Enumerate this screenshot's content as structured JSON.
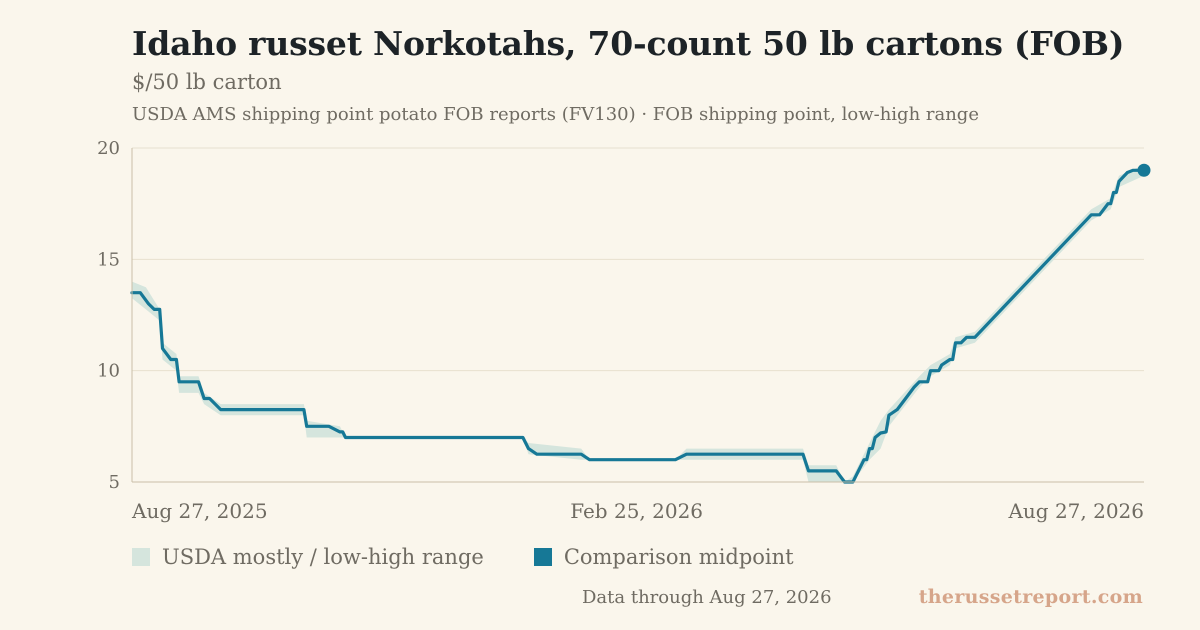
{
  "header": {
    "title": "Idaho russet Norkotahs, 70-count 50 lb cartons (FOB)",
    "subtitle": "$/50 lb carton",
    "source": "USDA AMS shipping point potato FOB reports (FV130) · FOB shipping point, low-high range"
  },
  "footer": {
    "data_through": "Data through Aug 27, 2026",
    "brand": "therussetreport.com"
  },
  "colors": {
    "background": "#faf6ec",
    "line": "#167896",
    "band": "#d5e5dd",
    "grid": "#e7e0cf",
    "axis": "#c9bfa8",
    "brand": "#d6a58a"
  },
  "chart_data": {
    "type": "line",
    "x_type": "date",
    "ylim": [
      5,
      20
    ],
    "xlim": [
      "2025-08-27",
      "2026-08-27"
    ],
    "y_ticks": [
      5,
      10,
      15,
      20
    ],
    "y_tick_labels": [
      "5",
      "10",
      "15",
      "20"
    ],
    "x_ticks": [
      "2025-08-27",
      "2026-02-25",
      "2026-08-27"
    ],
    "x_tick_labels": [
      "Aug 27, 2025",
      "Feb 25, 2026",
      "Aug 27, 2026"
    ],
    "grid": true,
    "legend_position": "bottom",
    "legend": [
      "USDA mostly / low-high range",
      "Comparison midpoint"
    ],
    "series": [
      {
        "name": "Comparison midpoint",
        "kind": "line",
        "points": [
          [
            "2025-08-27",
            13.5
          ],
          [
            "2025-08-30",
            13.5
          ],
          [
            "2025-09-02",
            13.0
          ],
          [
            "2025-09-04",
            12.75
          ],
          [
            "2025-09-06",
            12.75
          ],
          [
            "2025-09-07",
            11.0
          ],
          [
            "2025-09-10",
            10.5
          ],
          [
            "2025-09-12",
            10.5
          ],
          [
            "2025-09-13",
            9.5
          ],
          [
            "2025-09-20",
            9.5
          ],
          [
            "2025-09-22",
            8.75
          ],
          [
            "2025-09-24",
            8.75
          ],
          [
            "2025-09-28",
            8.25
          ],
          [
            "2025-10-28",
            8.25
          ],
          [
            "2025-10-29",
            7.5
          ],
          [
            "2025-11-06",
            7.5
          ],
          [
            "2025-11-10",
            7.25
          ],
          [
            "2025-11-11",
            7.25
          ],
          [
            "2025-11-12",
            7.0
          ],
          [
            "2026-01-15",
            7.0
          ],
          [
            "2026-01-17",
            6.5
          ],
          [
            "2026-01-20",
            6.25
          ],
          [
            "2026-02-05",
            6.25
          ],
          [
            "2026-02-08",
            6.0
          ],
          [
            "2026-03-11",
            6.0
          ],
          [
            "2026-03-15",
            6.25
          ],
          [
            "2026-04-26",
            6.25
          ],
          [
            "2026-04-28",
            5.5
          ],
          [
            "2026-05-08",
            5.5
          ],
          [
            "2026-05-11",
            5.0
          ],
          [
            "2026-05-14",
            5.0
          ],
          [
            "2026-05-18",
            6.0
          ],
          [
            "2026-05-19",
            6.0
          ],
          [
            "2026-05-20",
            6.5
          ],
          [
            "2026-05-21",
            6.5
          ],
          [
            "2026-05-22",
            7.0
          ],
          [
            "2026-05-24",
            7.2
          ],
          [
            "2026-05-26",
            7.25
          ],
          [
            "2026-05-27",
            8.0
          ],
          [
            "2026-05-30",
            8.25
          ],
          [
            "2026-06-02",
            8.75
          ],
          [
            "2026-06-05",
            9.25
          ],
          [
            "2026-06-07",
            9.5
          ],
          [
            "2026-06-10",
            9.5
          ],
          [
            "2026-06-11",
            10.0
          ],
          [
            "2026-06-14",
            10.0
          ],
          [
            "2026-06-15",
            10.25
          ],
          [
            "2026-06-18",
            10.5
          ],
          [
            "2026-06-19",
            10.5
          ],
          [
            "2026-06-20",
            11.25
          ],
          [
            "2026-06-22",
            11.25
          ],
          [
            "2026-06-24",
            11.5
          ],
          [
            "2026-06-27",
            11.5
          ],
          [
            "2026-08-08",
            17.0
          ],
          [
            "2026-08-11",
            17.0
          ],
          [
            "2026-08-14",
            17.5
          ],
          [
            "2026-08-15",
            17.5
          ],
          [
            "2026-08-16",
            18.0
          ],
          [
            "2026-08-17",
            18.0
          ],
          [
            "2026-08-18",
            18.5
          ],
          [
            "2026-08-21",
            18.9
          ],
          [
            "2026-08-23",
            19.0
          ],
          [
            "2026-08-27",
            19.0
          ]
        ]
      },
      {
        "name": "USDA mostly / low-high range",
        "kind": "band",
        "points": [
          [
            "2025-08-27",
            13.25,
            14.0
          ],
          [
            "2025-09-01",
            12.75,
            13.75
          ],
          [
            "2025-09-06",
            12.25,
            12.75
          ],
          [
            "2025-09-07",
            10.5,
            11.25
          ],
          [
            "2025-09-12",
            10.0,
            10.75
          ],
          [
            "2025-09-13",
            9.0,
            9.75
          ],
          [
            "2025-09-20",
            9.0,
            9.75
          ],
          [
            "2025-09-22",
            8.5,
            9.0
          ],
          [
            "2025-09-28",
            8.0,
            8.5
          ],
          [
            "2025-10-28",
            8.0,
            8.5
          ],
          [
            "2025-10-29",
            7.0,
            7.75
          ],
          [
            "2025-11-10",
            7.0,
            7.5
          ],
          [
            "2025-11-12",
            7.0,
            7.0
          ],
          [
            "2026-01-15",
            7.0,
            7.0
          ],
          [
            "2026-01-17",
            6.25,
            6.75
          ],
          [
            "2026-02-05",
            6.0,
            6.5
          ],
          [
            "2026-02-08",
            6.0,
            6.0
          ],
          [
            "2026-03-11",
            6.0,
            6.0
          ],
          [
            "2026-03-15",
            6.0,
            6.5
          ],
          [
            "2026-04-26",
            6.0,
            6.5
          ],
          [
            "2026-04-28",
            5.0,
            5.75
          ],
          [
            "2026-05-08",
            5.0,
            5.75
          ],
          [
            "2026-05-11",
            5.0,
            5.0
          ],
          [
            "2026-05-14",
            5.0,
            5.25
          ],
          [
            "2026-05-20",
            6.0,
            6.75
          ],
          [
            "2026-05-24",
            6.5,
            7.75
          ],
          [
            "2026-05-27",
            7.5,
            8.25
          ],
          [
            "2026-06-07",
            9.25,
            9.75
          ],
          [
            "2026-06-11",
            9.75,
            10.25
          ],
          [
            "2026-06-18",
            10.25,
            10.75
          ],
          [
            "2026-06-20",
            11.0,
            11.5
          ],
          [
            "2026-06-27",
            11.25,
            11.75
          ],
          [
            "2026-08-08",
            16.75,
            17.25
          ],
          [
            "2026-08-15",
            17.25,
            17.75
          ],
          [
            "2026-08-18",
            18.25,
            18.75
          ],
          [
            "2026-08-27",
            18.75,
            19.25
          ]
        ]
      }
    ]
  }
}
